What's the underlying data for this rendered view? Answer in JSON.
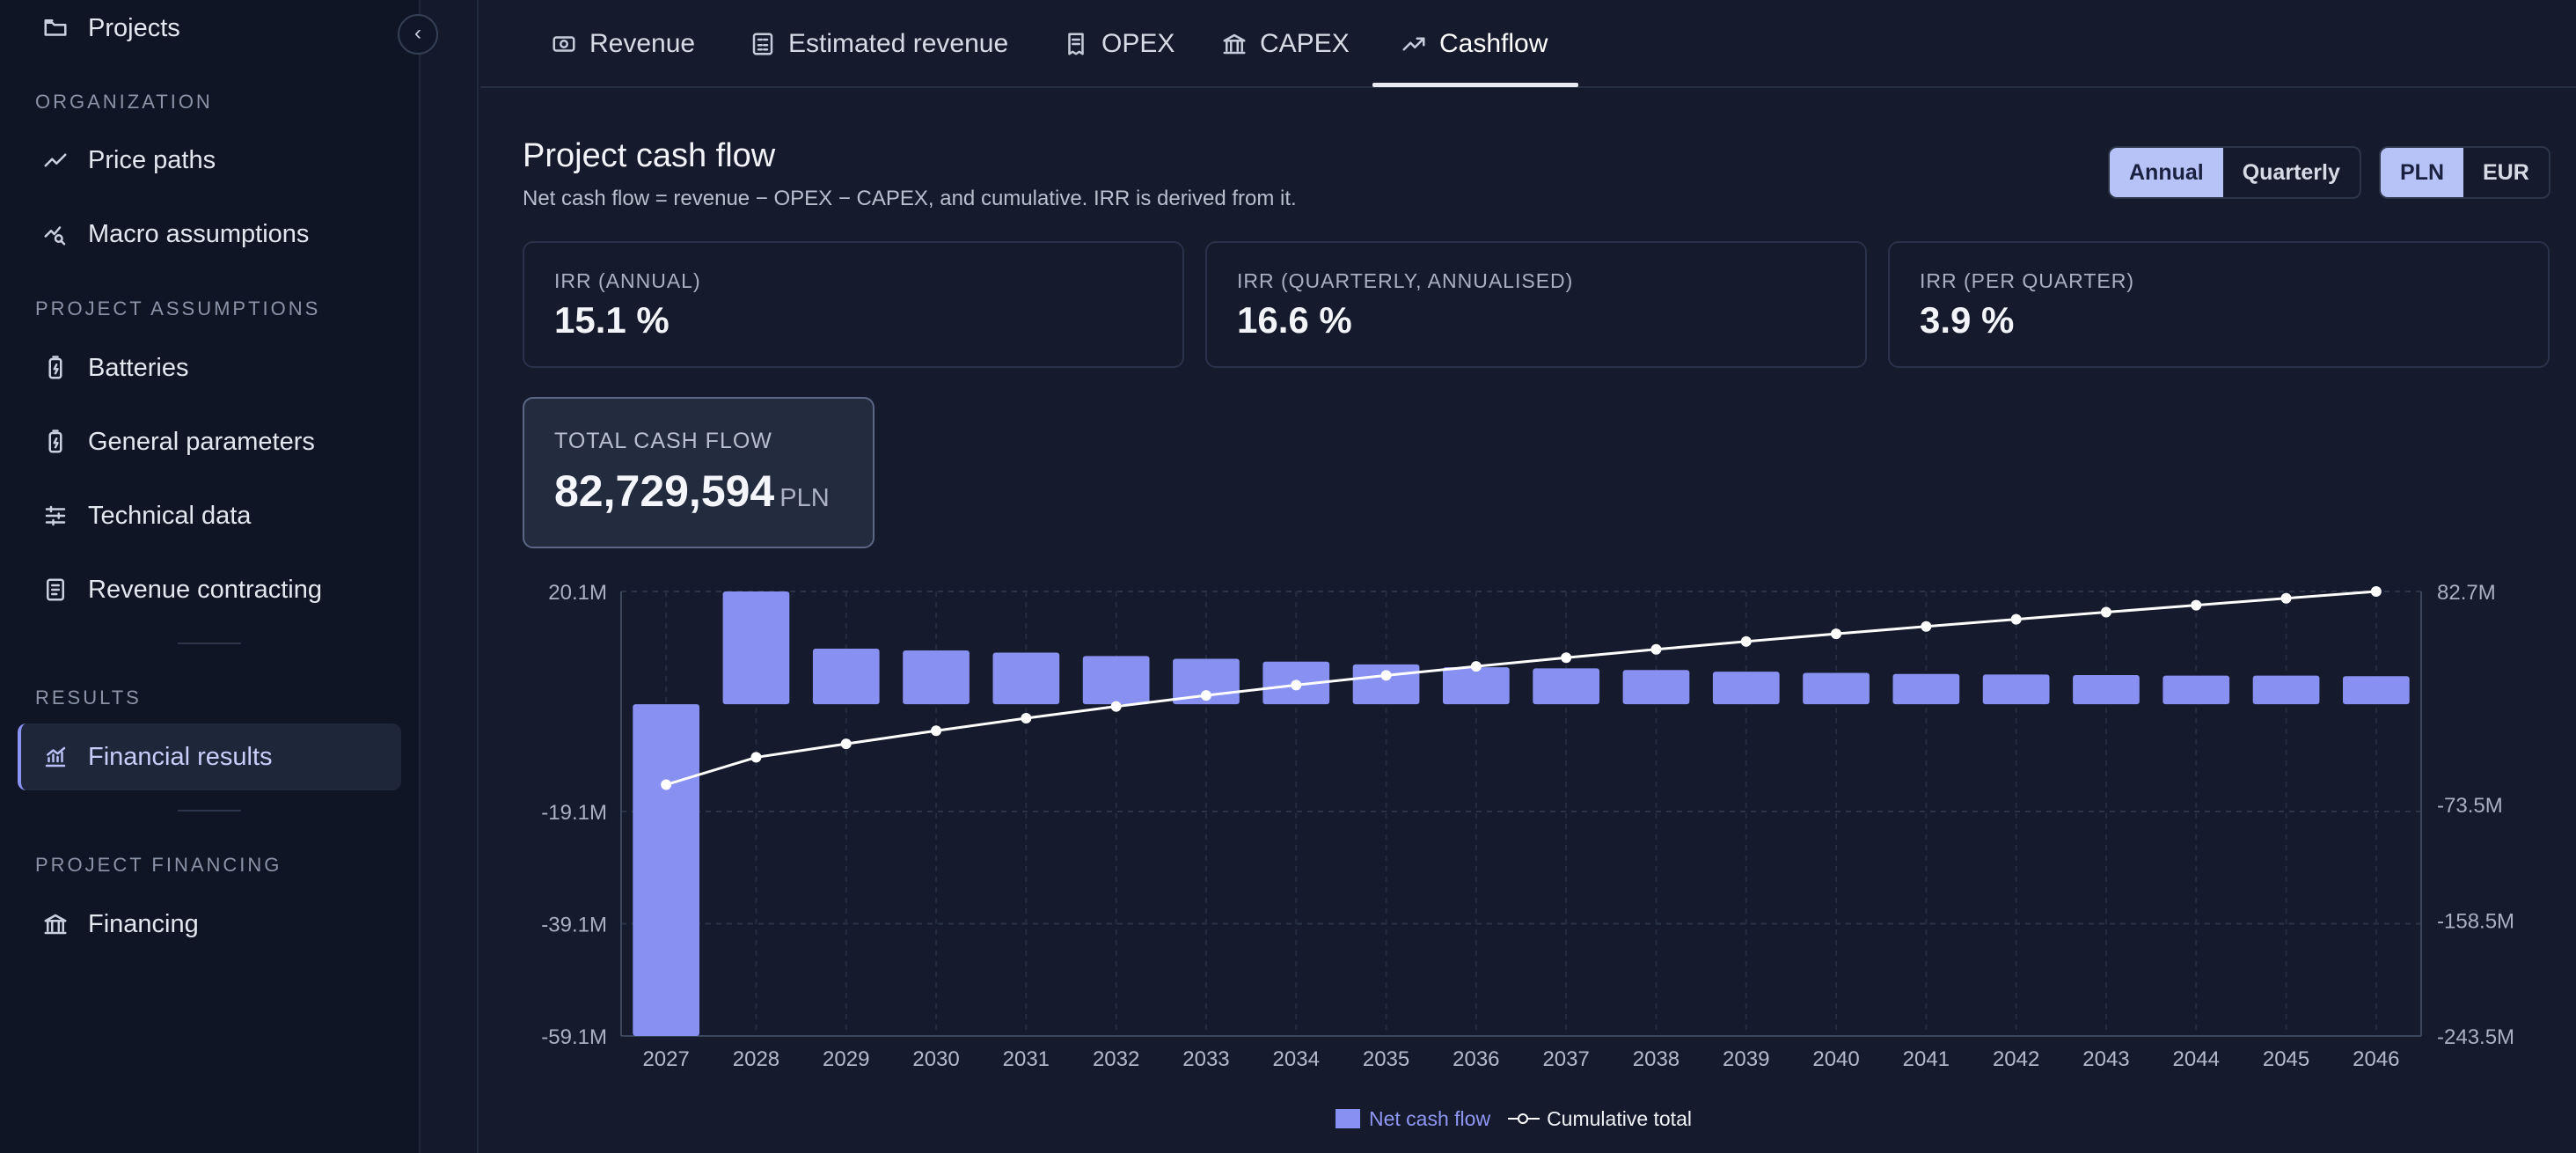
{
  "sidebar": {
    "items": {
      "projects": "Projects",
      "price_paths": "Price paths",
      "macro": "Macro assumptions",
      "batteries": "Batteries",
      "general": "General parameters",
      "technical": "Technical data",
      "revenue_contracting": "Revenue contracting",
      "financial_results": "Financial results",
      "financing": "Financing"
    },
    "sections": {
      "organization": "ORGANIZATION",
      "project_assumptions": "PROJECT ASSUMPTIONS",
      "results": "RESULTS",
      "project_financing": "PROJECT FINANCING"
    },
    "collapse_glyph": "‹"
  },
  "tabs": [
    "Revenue",
    "Estimated revenue",
    "OPEX",
    "CAPEX",
    "Cashflow"
  ],
  "active_tab": "Cashflow",
  "page": {
    "title": "Project cash flow",
    "subtitle": "Net cash flow = revenue − OPEX − CAPEX, and cumulative. IRR is derived from it."
  },
  "period_toggle": {
    "options": [
      "Annual",
      "Quarterly"
    ],
    "selected": "Annual"
  },
  "currency_toggle": {
    "options": [
      "PLN",
      "EUR"
    ],
    "selected": "PLN"
  },
  "metrics": [
    {
      "label": "IRR (ANNUAL)",
      "value": "15.1 %"
    },
    {
      "label": "IRR (QUARTERLY, ANNUALISED)",
      "value": "16.6 %"
    },
    {
      "label": "IRR (PER QUARTER)",
      "value": "3.9 %"
    }
  ],
  "total_cash_flow": {
    "label": "TOTAL CASH FLOW",
    "value": "82,729,594",
    "unit": "PLN"
  },
  "legend": {
    "bars": "Net cash flow",
    "line": "Cumulative total"
  },
  "colors": {
    "bar": "#8890f2",
    "line": "#ffffff",
    "accent": "#b7c3f7",
    "background": "#151b2c"
  },
  "chart_data": {
    "type": "bar",
    "categories": [
      "2027",
      "2028",
      "2029",
      "2030",
      "2031",
      "2032",
      "2033",
      "2034",
      "2035",
      "2036",
      "2037",
      "2038",
      "2039",
      "2040",
      "2041",
      "2042",
      "2043",
      "2044",
      "2045",
      "2046"
    ],
    "series": [
      {
        "name": "Net cash flow",
        "type": "bar",
        "axis": "left",
        "values": [
          -59.1,
          20.1,
          9.9,
          9.6,
          9.2,
          8.6,
          8.1,
          7.6,
          7.1,
          6.6,
          6.4,
          6.1,
          5.8,
          5.6,
          5.4,
          5.3,
          5.2,
          5.1,
          5.1,
          5.0
        ]
      },
      {
        "name": "Cumulative total",
        "type": "line",
        "axis": "right",
        "values": [
          -59.1,
          -39.0,
          -29.1,
          -19.5,
          -10.3,
          -1.7,
          6.4,
          14.0,
          21.1,
          27.7,
          34.1,
          40.2,
          46.0,
          51.6,
          57.0,
          62.3,
          67.5,
          72.6,
          77.7,
          82.7
        ]
      }
    ],
    "y_left": {
      "ticks": [
        20.1,
        -19.1,
        -39.1,
        -59.1
      ],
      "tick_labels": [
        "20.1M",
        "-19.1M",
        "-39.1M",
        "-59.1M"
      ],
      "range": [
        -59.1,
        20.1
      ]
    },
    "y_right": {
      "ticks": [
        82.7,
        -73.5,
        -158.5,
        -243.5
      ],
      "tick_labels": [
        "82.7M",
        "-73.5M",
        "-158.5M",
        "-243.5M"
      ],
      "range": [
        -243.5,
        82.7
      ]
    },
    "grid": true,
    "legend_position": "bottom-center"
  }
}
